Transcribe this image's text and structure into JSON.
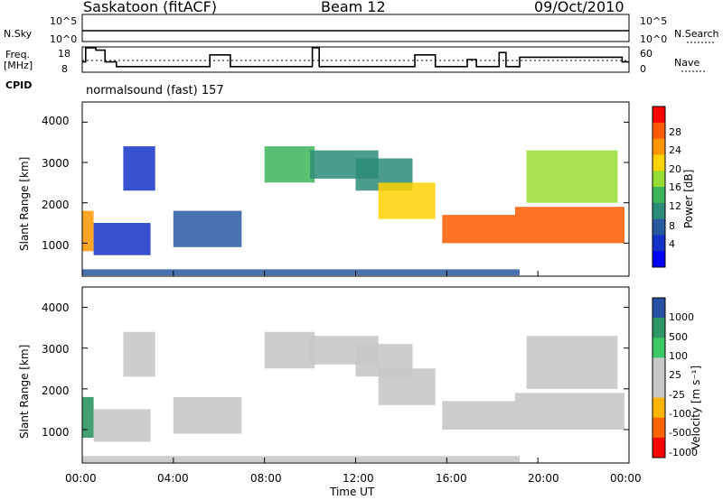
{
  "header": {
    "station": "Saskatoon (fitACF)",
    "beam": "Beam 12",
    "date": "09/Oct/2010"
  },
  "noise_panel": {
    "left_label": "N.Sky",
    "right_label": "N.Search",
    "y_ticks_left": [
      "10^5",
      "10^0"
    ],
    "y_ticks_right": [
      "10^5",
      "10^0"
    ]
  },
  "freq_panel": {
    "label_line1": "Freq.",
    "label_line2": "[MHz]",
    "right_label": "Nave",
    "y_ticks_left": [
      "18",
      "8"
    ],
    "y_ticks_right": [
      "60",
      "0"
    ]
  },
  "cpid": {
    "label": "CPID",
    "program": "normalsound (fast) 157"
  },
  "power_panel": {
    "ylabel": "Slant Range [km]",
    "cbar_label": "Power [dB]",
    "cbar_ticks": [
      "28",
      "24",
      "20",
      "16",
      "12",
      "8",
      "4"
    ],
    "cbar_colors": [
      "#ff0000",
      "#ff5a00",
      "#ff9600",
      "#ffd200",
      "#96dc32",
      "#3cb45a",
      "#2d8c78",
      "#285aa0",
      "#1432c8",
      "#0000ff"
    ]
  },
  "velocity_panel": {
    "ylabel": "Slant Range [km]",
    "cbar_label": "Velocity [m s⁻¹]",
    "cbar_ticks": [
      "1000",
      "500",
      "100",
      "25",
      "-25",
      "-100",
      "-500",
      "-1000"
    ],
    "cbar_colors": [
      "#2850a0",
      "#2d9664",
      "#3cc864",
      "#c8c8c8",
      "#c8c8c8",
      "#ffb400",
      "#ff6400",
      "#ff0000"
    ]
  },
  "x_axis": {
    "label": "Time UT",
    "ticks": [
      "00:00",
      "04:00",
      "08:00",
      "12:00",
      "16:00",
      "20:00",
      "00:00"
    ]
  },
  "range_ticks": [
    "4000",
    "3000",
    "2000",
    "1000"
  ],
  "chart_data": {
    "type": "heatmap",
    "x_unit": "hours UT",
    "xlim": [
      0,
      24
    ],
    "y_unit": "km",
    "ylim": [
      180,
      4500
    ],
    "power_range_db": [
      0,
      30
    ],
    "velocity_range_ms": [
      -1000,
      1000
    ],
    "power_echo_regions": [
      {
        "t0": 0.0,
        "t1": 0.5,
        "r0": 800,
        "r1": 1800,
        "db": 22
      },
      {
        "t0": 0.5,
        "t1": 3.0,
        "r0": 700,
        "r1": 1500,
        "db": 6
      },
      {
        "t0": 1.8,
        "t1": 3.2,
        "r0": 2300,
        "r1": 3400,
        "db": 5
      },
      {
        "t0": 4.0,
        "t1": 7.0,
        "r0": 900,
        "r1": 1800,
        "db": 9
      },
      {
        "t0": 8.0,
        "t1": 10.2,
        "r0": 2500,
        "r1": 3400,
        "db": 14
      },
      {
        "t0": 10.0,
        "t1": 13.0,
        "r0": 2600,
        "r1": 3300,
        "db": 10
      },
      {
        "t0": 12.0,
        "t1": 14.5,
        "r0": 2300,
        "r1": 3100,
        "db": 12
      },
      {
        "t0": 13.0,
        "t1": 15.5,
        "r0": 1600,
        "r1": 2500,
        "db": 21
      },
      {
        "t0": 15.8,
        "t1": 19.0,
        "r0": 1000,
        "r1": 1700,
        "db": 26
      },
      {
        "t0": 19.0,
        "t1": 23.8,
        "r0": 1000,
        "r1": 1900,
        "db": 27
      },
      {
        "t0": 19.5,
        "t1": 23.5,
        "r0": 2000,
        "r1": 3300,
        "db": 16
      },
      {
        "t0": 0.0,
        "t1": 19.2,
        "r0": 200,
        "r1": 350,
        "db": 8
      }
    ],
    "frequency_mhz": [
      {
        "t": 0.0,
        "v": 12
      },
      {
        "t": 0.15,
        "v": 18
      },
      {
        "t": 0.6,
        "v": 17
      },
      {
        "t": 1.0,
        "v": 12
      },
      {
        "t": 1.5,
        "v": 10
      },
      {
        "t": 5.6,
        "v": 15
      },
      {
        "t": 6.5,
        "v": 10
      },
      {
        "t": 10.1,
        "v": 18
      },
      {
        "t": 10.4,
        "v": 10
      },
      {
        "t": 14.6,
        "v": 15
      },
      {
        "t": 15.5,
        "v": 10
      },
      {
        "t": 16.9,
        "v": 13
      },
      {
        "t": 17.3,
        "v": 10
      },
      {
        "t": 18.3,
        "v": 16
      },
      {
        "t": 18.6,
        "v": 10
      },
      {
        "t": 19.2,
        "v": 14
      },
      {
        "t": 23.7,
        "v": 12
      }
    ]
  }
}
